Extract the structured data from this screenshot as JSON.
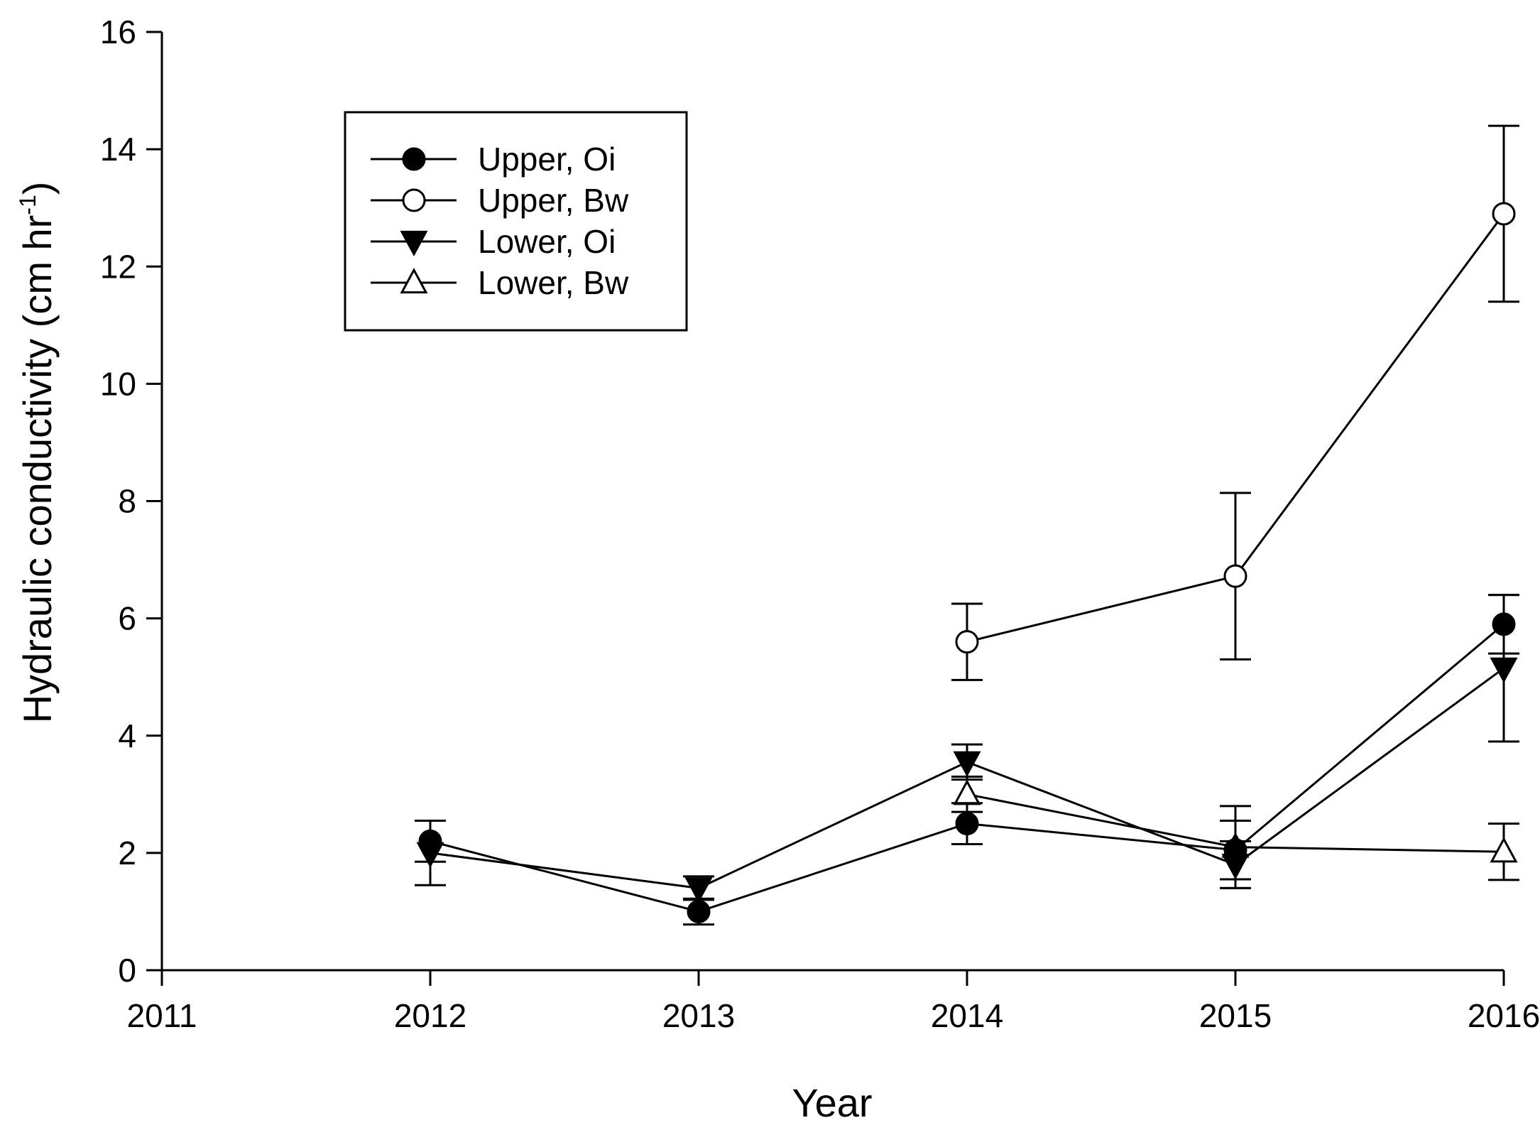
{
  "chart_data": {
    "type": "line",
    "title": "",
    "xlabel": "Year",
    "ylabel": "Hydraulic conductivity (cm hr",
    "ylabel_superscript": "-1",
    "ylabel_close": ")",
    "xlim": [
      2011,
      2016
    ],
    "ylim": [
      0,
      16
    ],
    "xticks": [
      "2011",
      "2012",
      "2013",
      "2014",
      "2015",
      "2016"
    ],
    "yticks": [
      "0",
      "2",
      "4",
      "6",
      "8",
      "10",
      "12",
      "14",
      "16"
    ],
    "legend_position": "upper-left",
    "series": [
      {
        "name": "Upper, Oi",
        "marker": "filled-circle",
        "x": [
          2012,
          2013,
          2014,
          2015,
          2016
        ],
        "y": [
          2.2,
          1.0,
          2.5,
          2.05,
          5.9
        ],
        "err": [
          0.35,
          0.22,
          0.35,
          0.5,
          0.5
        ]
      },
      {
        "name": "Upper, Bw",
        "marker": "open-circle",
        "x": [
          2014,
          2015,
          2016
        ],
        "y": [
          5.6,
          6.72,
          12.9
        ],
        "err": [
          0.65,
          1.42,
          1.5
        ]
      },
      {
        "name": "Lower, Oi",
        "marker": "filled-triangle-down",
        "x": [
          2012,
          2013,
          2014,
          2015,
          2016
        ],
        "y": [
          2.0,
          1.4,
          3.55,
          1.8,
          5.15
        ],
        "err": [
          0.55,
          0.2,
          0.3,
          0.4,
          1.25
        ]
      },
      {
        "name": "Lower, Bw",
        "marker": "open-triangle-up",
        "x": [
          2014,
          2015,
          2016
        ],
        "y": [
          3.0,
          2.1,
          2.02
        ],
        "err": [
          0.3,
          0.7,
          0.48
        ]
      }
    ]
  }
}
